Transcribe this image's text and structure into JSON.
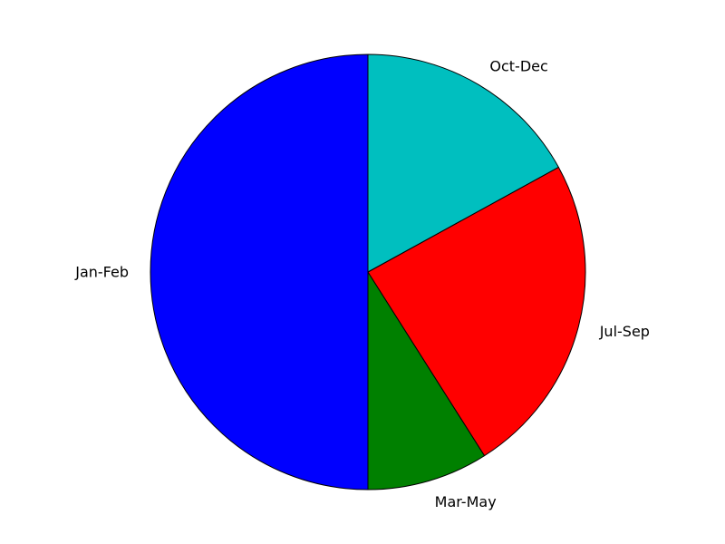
{
  "chart_data": {
    "type": "pie",
    "title": "",
    "start_angle_deg": 90,
    "direction": "counterclockwise",
    "slices": [
      {
        "label": "Jan-Feb",
        "value": 50,
        "color": "#0000ff"
      },
      {
        "label": "Mar-May",
        "value": 9,
        "color": "#008000"
      },
      {
        "label": "Jul-Sep",
        "value": 24,
        "color": "#ff0000"
      },
      {
        "label": "Oct-Dec",
        "value": 17,
        "color": "#00bfbf"
      }
    ]
  }
}
